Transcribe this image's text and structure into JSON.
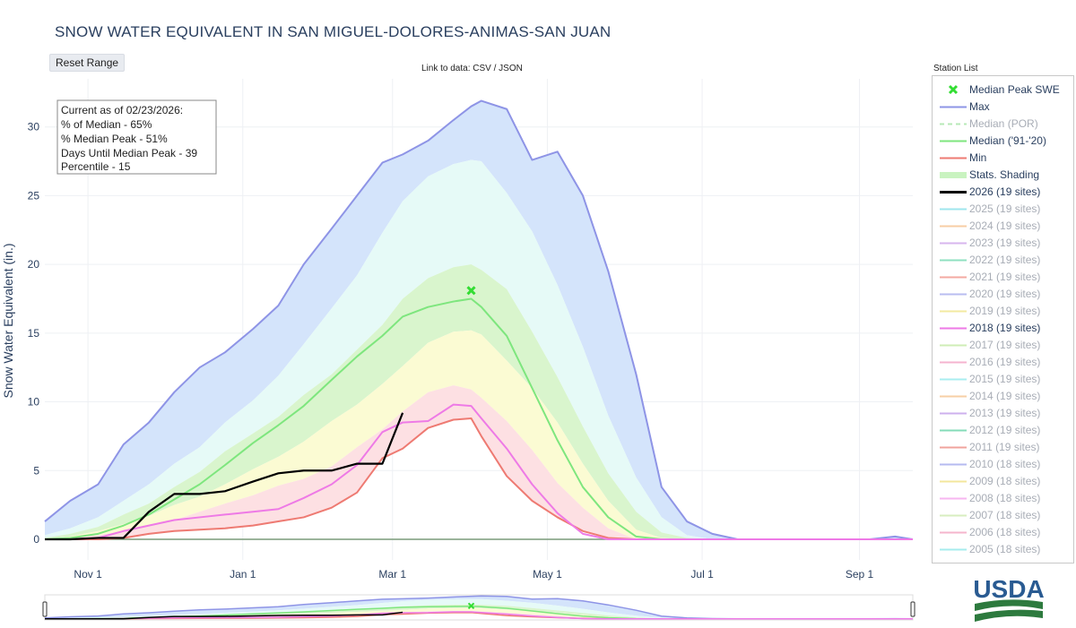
{
  "title": "SNOW WATER EQUIVALENT IN SAN MIGUEL-DOLORES-ANIMAS-SAN JUAN",
  "reset_button": "Reset Range",
  "link_prefix": "Link to data:",
  "link_csv": "CSV",
  "link_sep": "/",
  "link_json": "JSON",
  "station_list": "Station List",
  "annotation": [
    "Current as of 02/23/2026:",
    "% of Median - 65%",
    "% Median Peak - 51%",
    "Days Until Median Peak - 39",
    "Percentile - 15"
  ],
  "logo_text": "USDA",
  "colors": {
    "max": "#8e94e6",
    "median_por": "#9be39b",
    "median": "#7ee67e",
    "min": "#ee7a72",
    "y2026": "#000000",
    "y2018": "#ee7ae6",
    "peak_marker": "#33dd33",
    "band_max": "#d4e4fb",
    "band_90": "#e6faf7",
    "band_70": "#d9f5cd",
    "band_50": "#fbfbd3",
    "band_30": "#fde0e3"
  },
  "legend": [
    {
      "label": "Median Peak SWE",
      "symbol": "x",
      "color": "#33dd33",
      "dim": false
    },
    {
      "label": "Max",
      "symbol": "line",
      "color": "#8e94e6",
      "dim": false
    },
    {
      "label": "Median (POR)",
      "symbol": "dash",
      "color": "#b7e9b7",
      "dim": true
    },
    {
      "label": "Median ('91-'20)",
      "symbol": "line",
      "color": "#7ee67e",
      "dim": false
    },
    {
      "label": "Min",
      "symbol": "line",
      "color": "#ee7a72",
      "dim": false
    },
    {
      "label": "Stats. Shading",
      "symbol": "band",
      "color": "#c9f3c0",
      "dim": false
    },
    {
      "label": "2026 (19 sites)",
      "symbol": "thick",
      "color": "#000000",
      "dim": false
    },
    {
      "label": "2025 (19 sites)",
      "symbol": "line",
      "color": "#9fe6ee",
      "dim": true
    },
    {
      "label": "2024 (19 sites)",
      "symbol": "line",
      "color": "#f7cda4",
      "dim": true
    },
    {
      "label": "2023 (19 sites)",
      "symbol": "line",
      "color": "#d7b6ee",
      "dim": true
    },
    {
      "label": "2022 (19 sites)",
      "symbol": "line",
      "color": "#8fe0c0",
      "dim": true
    },
    {
      "label": "2021 (19 sites)",
      "symbol": "line",
      "color": "#f3a9a2",
      "dim": true
    },
    {
      "label": "2020 (19 sites)",
      "symbol": "line",
      "color": "#b9bdf0",
      "dim": true
    },
    {
      "label": "2019 (19 sites)",
      "symbol": "line",
      "color": "#f3eaa0",
      "dim": true
    },
    {
      "label": "2018 (19 sites)",
      "symbol": "line",
      "color": "#ee7ae6",
      "dim": false
    },
    {
      "label": "2017 (19 sites)",
      "symbol": "line",
      "color": "#cfeeb6",
      "dim": true
    },
    {
      "label": "2016 (19 sites)",
      "symbol": "line",
      "color": "#f5b3cf",
      "dim": true
    },
    {
      "label": "2015 (19 sites)",
      "symbol": "line",
      "color": "#a9eef0",
      "dim": true
    },
    {
      "label": "2014 (19 sites)",
      "symbol": "line",
      "color": "#f7cfa6",
      "dim": true
    },
    {
      "label": "2013 (19 sites)",
      "symbol": "line",
      "color": "#cdb0ee",
      "dim": true
    },
    {
      "label": "2012 (19 sites)",
      "symbol": "line",
      "color": "#85dcb8",
      "dim": true
    },
    {
      "label": "2011 (19 sites)",
      "symbol": "line",
      "color": "#f0a39c",
      "dim": true
    },
    {
      "label": "2010 (18 sites)",
      "symbol": "line",
      "color": "#b5baf0",
      "dim": true
    },
    {
      "label": "2009 (18 sites)",
      "symbol": "line",
      "color": "#f3e79c",
      "dim": true
    },
    {
      "label": "2008 (18 sites)",
      "symbol": "line",
      "color": "#f7b6f0",
      "dim": true
    },
    {
      "label": "2007 (18 sites)",
      "symbol": "line",
      "color": "#d7eebf",
      "dim": true
    },
    {
      "label": "2006 (18 sites)",
      "symbol": "line",
      "color": "#f5b5cc",
      "dim": true
    },
    {
      "label": "2005 (18 sites)",
      "symbol": "line",
      "color": "#a6ecee",
      "dim": true
    }
  ],
  "chart_data": {
    "type": "line",
    "title": "SNOW WATER EQUIVALENT IN SAN MIGUEL-DOLORES-ANIMAS-SAN JUAN",
    "ylabel": "Snow Water Equivalent (in.)",
    "xlabel": "",
    "ylim": [
      -1.5,
      33.5
    ],
    "xlim": [
      "Oct 15",
      "Sep 22"
    ],
    "yticks": [
      0,
      5,
      10,
      15,
      20,
      25,
      30
    ],
    "xticks": [
      {
        "label": "Nov 1",
        "date": "Nov 1"
      },
      {
        "label": "Jan 1",
        "date": "Jan 1"
      },
      {
        "label": "Mar 1",
        "date": "Mar 1"
      },
      {
        "label": "May 1",
        "date": "May 1"
      },
      {
        "label": "Jul 1",
        "date": "Jul 1"
      },
      {
        "label": "Sep 1",
        "date": "Sep 1"
      }
    ],
    "grid": true,
    "legend_position": "right",
    "x_dates": [
      "Oct 15",
      "Oct 25",
      "Nov 5",
      "Nov 15",
      "Nov 25",
      "Dec 5",
      "Dec 15",
      "Dec 25",
      "Jan 5",
      "Jan 15",
      "Jan 25",
      "Feb 5",
      "Feb 15",
      "Feb 25",
      "Mar 5",
      "Mar 15",
      "Mar 25",
      "Apr 1",
      "Apr 5",
      "Apr 15",
      "Apr 25",
      "May 5",
      "May 15",
      "May 25",
      "Jun 5",
      "Jun 15",
      "Jun 25",
      "Jul 5",
      "Jul 15",
      "Jul 25",
      "Aug 5",
      "Aug 15",
      "Aug 25",
      "Sep 5",
      "Sep 15",
      "Sep 22"
    ],
    "bands": [
      {
        "name": "max-90",
        "upper": [
          1.3,
          2.8,
          4,
          6.9,
          8.5,
          10.7,
          12.5,
          13.6,
          15.3,
          17,
          20,
          22.6,
          25,
          27.4,
          28,
          29,
          30.5,
          31.5,
          31.9,
          31.3,
          27.6,
          28.2,
          25,
          19.5,
          12,
          3.8,
          1.3,
          0.4,
          0,
          0,
          0,
          0,
          0,
          0,
          0.2,
          0
        ],
        "lower": [
          0.3,
          0.8,
          1.6,
          2.8,
          4,
          5.5,
          6.7,
          8.5,
          10.1,
          11.9,
          14.2,
          16.8,
          19.2,
          22.3,
          24.6,
          26.4,
          27.3,
          27.6,
          27.5,
          25.2,
          22.4,
          18.5,
          14,
          9,
          4.5,
          1.6,
          0.3,
          0,
          0,
          0,
          0,
          0,
          0,
          0,
          0,
          0
        ]
      },
      {
        "name": "90-70",
        "upper": [
          0.3,
          0.8,
          1.6,
          2.8,
          4,
          5.5,
          6.7,
          8.5,
          10.1,
          11.9,
          14.2,
          16.8,
          19.2,
          22.3,
          24.6,
          26.4,
          27.3,
          27.6,
          27.5,
          25.2,
          22.4,
          18.5,
          14,
          9,
          4.5,
          1.6,
          0.3,
          0,
          0,
          0,
          0,
          0,
          0,
          0,
          0,
          0
        ],
        "lower": [
          0.1,
          0.4,
          0.9,
          1.8,
          2.6,
          3.8,
          4.9,
          6.4,
          7.7,
          8.9,
          10.5,
          12,
          13.8,
          15.6,
          17.5,
          19,
          19.8,
          20,
          19.6,
          18.2,
          15.1,
          11.8,
          8.2,
          4.8,
          2,
          0.5,
          0.1,
          0,
          0,
          0,
          0,
          0,
          0,
          0,
          0,
          0
        ]
      },
      {
        "name": "70-50",
        "upper": [
          0.1,
          0.4,
          0.9,
          1.8,
          2.6,
          3.8,
          4.9,
          6.4,
          7.7,
          8.9,
          10.5,
          12,
          13.8,
          15.6,
          17.5,
          19,
          19.8,
          20,
          19.6,
          18.2,
          15.1,
          11.8,
          8.2,
          4.8,
          2,
          0.5,
          0.1,
          0,
          0,
          0,
          0,
          0,
          0,
          0,
          0,
          0
        ],
        "lower": [
          0,
          0.2,
          0.6,
          1.1,
          1.7,
          2.5,
          3.1,
          4,
          5.1,
          6,
          7.1,
          8.6,
          9.8,
          11.3,
          12.6,
          14.3,
          15.1,
          15.2,
          14.9,
          13,
          11,
          8.5,
          5.5,
          2.8,
          0.7,
          0.1,
          0,
          0,
          0,
          0,
          0,
          0,
          0,
          0,
          0,
          0
        ]
      },
      {
        "name": "50-30",
        "upper": [
          0,
          0.2,
          0.6,
          1.1,
          1.7,
          2.5,
          3.1,
          4,
          5.1,
          6,
          7.1,
          8.6,
          9.8,
          11.3,
          12.6,
          14.3,
          15.1,
          15.2,
          14.9,
          13,
          11,
          8.5,
          5.5,
          2.8,
          0.7,
          0.1,
          0,
          0,
          0,
          0,
          0,
          0,
          0,
          0,
          0,
          0
        ],
        "lower": [
          0,
          0.1,
          0.3,
          0.6,
          1,
          1.4,
          2,
          2.6,
          3.2,
          3.9,
          4.4,
          5.3,
          6.7,
          8,
          9.3,
          10.7,
          11.2,
          10.9,
          10.3,
          8.6,
          6.5,
          4.1,
          2.3,
          0.8,
          0,
          0,
          0,
          0,
          0,
          0,
          0,
          0,
          0,
          0,
          0,
          0
        ]
      },
      {
        "name": "30-min",
        "upper": [
          0,
          0.1,
          0.3,
          0.6,
          1,
          1.4,
          2,
          2.6,
          3.2,
          3.9,
          4.4,
          5.3,
          6.7,
          8,
          9.3,
          10.7,
          11.2,
          10.9,
          10.3,
          8.6,
          6.5,
          4.1,
          2.3,
          0.8,
          0,
          0,
          0,
          0,
          0,
          0,
          0,
          0,
          0,
          0,
          0,
          0
        ],
        "lower": [
          0,
          0,
          0,
          0.1,
          0.4,
          0.6,
          0.7,
          0.8,
          1,
          1.3,
          1.6,
          2.3,
          3.4,
          5.9,
          6.6,
          8.1,
          8.7,
          8.8,
          7.5,
          4.6,
          2.8,
          1.6,
          0.6,
          0.1,
          0,
          0,
          0,
          0,
          0,
          0,
          0,
          0,
          0,
          0,
          0,
          0
        ]
      }
    ],
    "series": [
      {
        "name": "Max",
        "color": "#8e94e6",
        "width": 2,
        "values": [
          1.3,
          2.8,
          4,
          6.9,
          8.5,
          10.7,
          12.5,
          13.6,
          15.3,
          17,
          20,
          22.6,
          25,
          27.4,
          28,
          29,
          30.5,
          31.5,
          31.9,
          31.3,
          27.6,
          28.2,
          25,
          19.5,
          12,
          3.8,
          1.3,
          0.4,
          0,
          0,
          0,
          0,
          0,
          0,
          0.2,
          0
        ]
      },
      {
        "name": "Median ('91-'20)",
        "color": "#7ee67e",
        "width": 2,
        "values": [
          0,
          0.1,
          0.4,
          1,
          1.8,
          2.9,
          4,
          5.4,
          7,
          8.3,
          9.7,
          11.6,
          13.3,
          14.8,
          16.2,
          16.9,
          17.3,
          17.5,
          16.9,
          14.8,
          11,
          7.2,
          3.8,
          1.6,
          0.2,
          0,
          0,
          0,
          0,
          0,
          0,
          0,
          0,
          0,
          0,
          0
        ]
      },
      {
        "name": "Min",
        "color": "#ee7a72",
        "width": 2,
        "values": [
          0,
          0,
          0,
          0.1,
          0.4,
          0.6,
          0.7,
          0.8,
          1,
          1.3,
          1.6,
          2.3,
          3.4,
          5.9,
          6.6,
          8.1,
          8.7,
          8.8,
          7.5,
          4.6,
          2.8,
          1.6,
          0.6,
          0.1,
          0,
          0,
          0,
          0,
          0,
          0,
          0,
          0,
          0,
          0,
          0,
          0
        ]
      },
      {
        "name": "2018 (19 sites)",
        "color": "#ee7ae6",
        "width": 2,
        "values": [
          0,
          0,
          0.1,
          0.6,
          1,
          1.4,
          1.6,
          1.8,
          2,
          2.2,
          3,
          4,
          5.4,
          7.8,
          8.5,
          8.6,
          9.8,
          9.7,
          8.8,
          6.6,
          4,
          1.9,
          0.4,
          0,
          0,
          0,
          0,
          0,
          0,
          0,
          0,
          0,
          0,
          0,
          0,
          0
        ]
      },
      {
        "name": "2026 (19 sites)",
        "color": "#000000",
        "width": 2.2,
        "values": [
          0,
          0,
          0.1,
          0.1,
          2,
          3.3,
          3.3,
          3.5,
          4.2,
          4.8,
          5,
          5,
          5.5,
          5.5,
          9.2,
          null,
          null,
          null,
          null,
          null,
          null,
          null,
          null,
          null,
          null,
          null,
          null,
          null,
          null,
          null,
          null,
          null,
          null,
          null,
          null,
          null
        ]
      }
    ],
    "markers": [
      {
        "name": "Median Peak SWE",
        "x": "Apr 1",
        "y": 18.1,
        "symbol": "x",
        "color": "#33dd33"
      }
    ],
    "range_slider": true
  }
}
